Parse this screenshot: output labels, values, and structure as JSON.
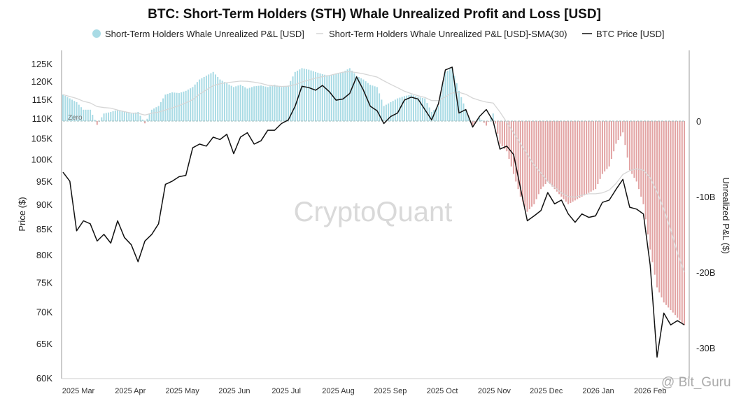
{
  "chart_data": {
    "type": "bar+line",
    "title": "BTC: Short-Term Holders (STH) Whale Unrealized Profit and Loss [USD]",
    "legend": {
      "placement": "top-center",
      "entries": [
        "Short-Term Holders Whale Unrealized P&L [USD]",
        "Short-Term Holders Whale Unrealized P&L [USD]-SMA(30)",
        "BTC Price [USD]"
      ]
    },
    "ylabel_left": "Price ($)",
    "ylabel_right": "Unrealized P&L ($)",
    "y_left_scale": "log",
    "y_left_range": [
      60000,
      130000
    ],
    "y_left_ticks": [
      "125K",
      "120K",
      "115K",
      "110K",
      "105K",
      "100K",
      "95K",
      "90K",
      "85K",
      "80K",
      "75K",
      "70K",
      "65K",
      "60K"
    ],
    "y_left_tick_values": [
      125000,
      120000,
      115000,
      110000,
      105000,
      100000,
      95000,
      90000,
      85000,
      80000,
      75000,
      70000,
      65000,
      60000
    ],
    "y_right_range_billions": [
      -33.9,
      9.0
    ],
    "y_right_ticks": [
      "0",
      "-10B",
      "-20B",
      "-30B"
    ],
    "y_right_tick_values": [
      0,
      -10,
      -20,
      -30
    ],
    "x_ticks": [
      "2025 Mar",
      "2025 Apr",
      "2025 May",
      "2025 Jun",
      "2025 Jul",
      "2025 Aug",
      "2025 Sep",
      "2025 Oct",
      "2025 Nov",
      "2025 Dec",
      "2026 Jan",
      "2026 Feb"
    ],
    "x_start": "2025-03-01",
    "step_days": 4,
    "zero_label": "Zero",
    "sma_window_days": 30,
    "colors": {
      "positive": "#a9dbe5",
      "negative": "#e2a3a3",
      "price": "#111111",
      "sma": "#d6d6d6"
    },
    "btc_price_k": [
      97.0,
      95.0,
      84.6,
      86.6,
      86.0,
      82.6,
      83.9,
      82.2,
      86.6,
      83.3,
      81.9,
      78.7,
      82.6,
      83.9,
      86.0,
      94.3,
      95.0,
      96.0,
      96.3,
      102.7,
      103.6,
      103.1,
      105.3,
      104.7,
      106.0,
      101.3,
      105.3,
      106.4,
      103.6,
      104.4,
      107.0,
      107.0,
      108.7,
      109.6,
      113.2,
      118.6,
      118.2,
      117.5,
      118.8,
      117.1,
      114.8,
      115.1,
      116.6,
      121.2,
      117.5,
      113.2,
      112.0,
      108.7,
      110.5,
      111.4,
      114.8,
      115.6,
      115.1,
      112.3,
      109.6,
      113.9,
      123.2,
      124.0,
      111.4,
      112.3,
      107.8,
      110.5,
      112.3,
      109.3,
      102.4,
      103.1,
      101.1,
      93.5,
      86.6,
      87.6,
      88.7,
      92.5,
      90.1,
      90.9,
      88.0,
      86.3,
      88.0,
      87.3,
      87.6,
      90.4,
      90.9,
      93.2,
      95.4,
      89.4,
      89.0,
      88.0,
      78.1,
      63.0,
      69.8,
      67.9,
      68.6,
      67.9
    ],
    "sth_whale_pnl_billions": [
      3.5,
      3.0,
      2.5,
      1.5,
      1.5,
      -0.5,
      1.0,
      1.2,
      1.5,
      1.3,
      1.0,
      1.2,
      -0.3,
      1.5,
      2.0,
      3.5,
      3.8,
      3.7,
      4.0,
      4.5,
      5.5,
      6.0,
      6.5,
      5.5,
      5.0,
      4.5,
      4.8,
      4.3,
      4.6,
      4.7,
      4.5,
      4.8,
      4.5,
      4.7,
      6.5,
      7.0,
      6.8,
      6.5,
      6.2,
      6.0,
      6.3,
      6.5,
      7.0,
      6.0,
      5.5,
      4.8,
      4.5,
      2.0,
      2.5,
      3.0,
      3.3,
      3.5,
      3.2,
      3.0,
      1.2,
      2.0,
      6.5,
      7.0,
      4.0,
      1.5,
      -0.8,
      0.5,
      -0.6,
      1.0,
      -3.0,
      -4.0,
      -7.0,
      -10.0,
      -12.0,
      -11.0,
      -9.0,
      -8.0,
      -9.0,
      -10.0,
      -11.0,
      -10.5,
      -10.0,
      -9.5,
      -9.0,
      -7.0,
      -6.0,
      -3.0,
      -1.5,
      -6.5,
      -8.0,
      -11.0,
      -17.0,
      -22.0,
      -24.0,
      -25.0,
      -26.0,
      -27.0
    ]
  },
  "watermark": "CryptoQuant",
  "credit": "@ Bit_Guru"
}
